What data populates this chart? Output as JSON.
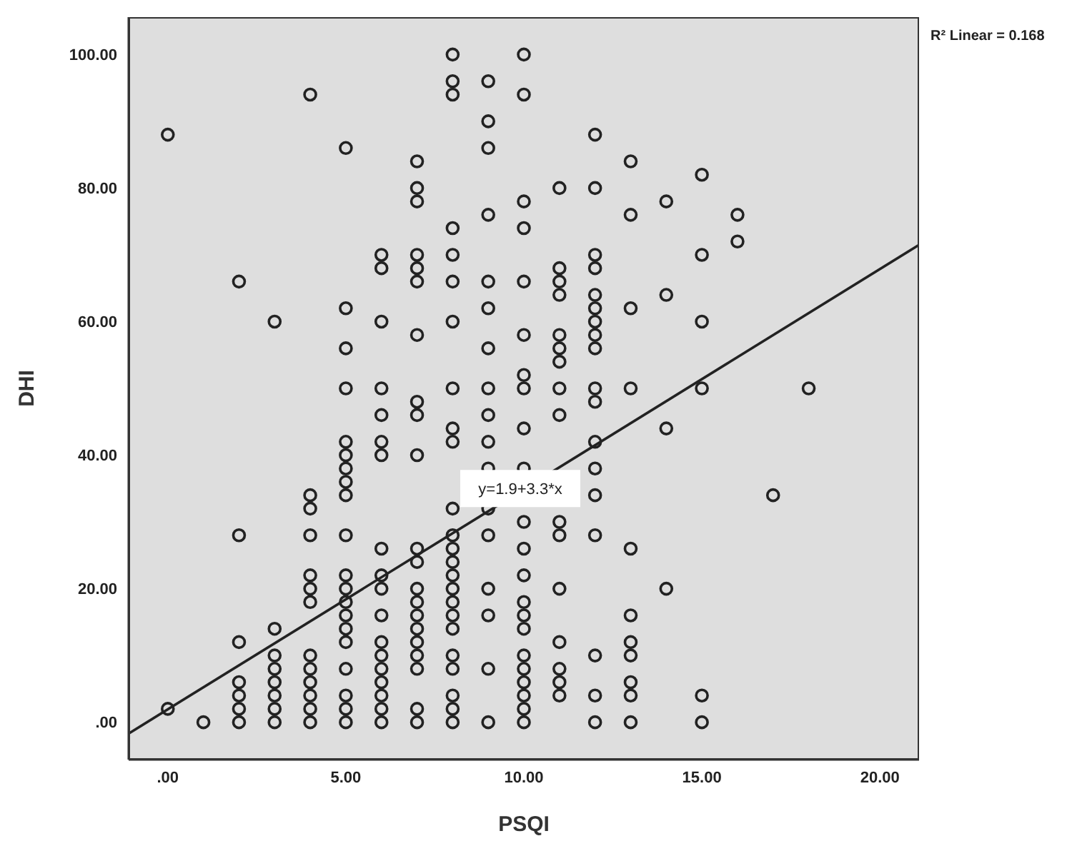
{
  "chart_data": {
    "type": "scatter",
    "xlabel": "PSQI",
    "ylabel": "DHI",
    "xlim": [
      -1.1,
      21.1
    ],
    "ylim": [
      -5.6,
      105.6
    ],
    "xticks": [
      {
        "value": 0,
        "label": ".00"
      },
      {
        "value": 5,
        "label": "5.00"
      },
      {
        "value": 10,
        "label": "10.00"
      },
      {
        "value": 15,
        "label": "15.00"
      },
      {
        "value": 20,
        "label": "20.00"
      }
    ],
    "yticks": [
      {
        "value": 0,
        "label": ".00"
      },
      {
        "value": 20,
        "label": "20.00"
      },
      {
        "value": 40,
        "label": "40.00"
      },
      {
        "value": 60,
        "label": "60.00"
      },
      {
        "value": 80,
        "label": "80.00"
      },
      {
        "value": 100,
        "label": "100.00"
      }
    ],
    "marker": "circle",
    "annotations": [
      {
        "text": "y=1.9+3.3*x",
        "x": 9.9,
        "y": 35
      },
      "R² Linear = 0.168"
    ],
    "series": [
      {
        "color": "#222222",
        "x": [
          0,
          0,
          1,
          2,
          2,
          2,
          2,
          2,
          2,
          2,
          3,
          3,
          3,
          3,
          3,
          3,
          3,
          3,
          4,
          4,
          4,
          4,
          4,
          4,
          4,
          4,
          4,
          4,
          4,
          4,
          4,
          5,
          5,
          5,
          5,
          5,
          5,
          5,
          5,
          5,
          5,
          5,
          5,
          5,
          5,
          5,
          5,
          5,
          5,
          5,
          5,
          6,
          6,
          6,
          6,
          6,
          6,
          6,
          6,
          6,
          6,
          6,
          6,
          6,
          6,
          6,
          6,
          6,
          6,
          7,
          7,
          7,
          7,
          7,
          7,
          7,
          7,
          7,
          7,
          7,
          7,
          7,
          7,
          7,
          7,
          7,
          7,
          7,
          7,
          7,
          8,
          8,
          8,
          8,
          8,
          8,
          8,
          8,
          8,
          8,
          8,
          8,
          8,
          8,
          8,
          8,
          8,
          8,
          8,
          8,
          8,
          8,
          8,
          8,
          9,
          9,
          9,
          9,
          9,
          9,
          9,
          9,
          9,
          9,
          9,
          9,
          9,
          9,
          9,
          9,
          9,
          10,
          10,
          10,
          10,
          10,
          10,
          10,
          10,
          10,
          10,
          10,
          10,
          10,
          10,
          10,
          10,
          10,
          10,
          10,
          10,
          10,
          10,
          11,
          11,
          11,
          11,
          11,
          11,
          11,
          11,
          11,
          11,
          11,
          11,
          11,
          11,
          11,
          11,
          12,
          12,
          12,
          12,
          12,
          12,
          12,
          12,
          12,
          12,
          12,
          12,
          12,
          12,
          12,
          12,
          12,
          12,
          13,
          13,
          13,
          13,
          13,
          13,
          13,
          13,
          13,
          13,
          13,
          14,
          14,
          14,
          14,
          15,
          15,
          15,
          15,
          15,
          15,
          16,
          16,
          17,
          18
        ],
        "values": [
          88,
          2,
          0,
          66,
          28,
          12,
          6,
          4,
          2,
          0,
          60,
          14,
          10,
          8,
          6,
          4,
          2,
          0,
          94,
          34,
          32,
          28,
          22,
          20,
          18,
          10,
          8,
          6,
          4,
          2,
          0,
          86,
          62,
          56,
          50,
          42,
          40,
          38,
          36,
          34,
          28,
          22,
          20,
          18,
          16,
          14,
          12,
          8,
          4,
          2,
          0,
          70,
          68,
          60,
          50,
          46,
          42,
          40,
          26,
          22,
          20,
          16,
          12,
          10,
          8,
          6,
          4,
          2,
          0,
          84,
          80,
          78,
          70,
          68,
          66,
          58,
          48,
          46,
          40,
          26,
          24,
          20,
          18,
          16,
          14,
          12,
          10,
          8,
          2,
          0,
          100,
          96,
          94,
          74,
          70,
          66,
          60,
          50,
          44,
          42,
          32,
          28,
          26,
          24,
          22,
          20,
          18,
          16,
          14,
          10,
          8,
          4,
          2,
          0,
          96,
          90,
          86,
          76,
          66,
          62,
          56,
          50,
          46,
          42,
          38,
          32,
          28,
          20,
          16,
          8,
          0,
          100,
          94,
          78,
          74,
          66,
          58,
          52,
          50,
          44,
          38,
          30,
          26,
          22,
          18,
          16,
          14,
          10,
          8,
          6,
          4,
          2,
          0,
          80,
          68,
          66,
          64,
          58,
          56,
          54,
          50,
          46,
          30,
          28,
          20,
          12,
          8,
          6,
          4,
          88,
          80,
          70,
          68,
          64,
          62,
          60,
          58,
          56,
          50,
          48,
          42,
          38,
          34,
          28,
          10,
          4,
          0,
          84,
          76,
          62,
          50,
          26,
          16,
          12,
          10,
          6,
          4,
          0,
          78,
          64,
          44,
          20,
          82,
          70,
          60,
          50,
          4,
          0,
          76,
          72,
          34,
          50
        ]
      },
      {
        "type": "line",
        "color": "#222222",
        "x": [
          -1.1,
          21.1
        ],
        "values": [
          -1.7,
          71.5
        ],
        "line_style": "solid",
        "marker": "none"
      }
    ]
  }
}
